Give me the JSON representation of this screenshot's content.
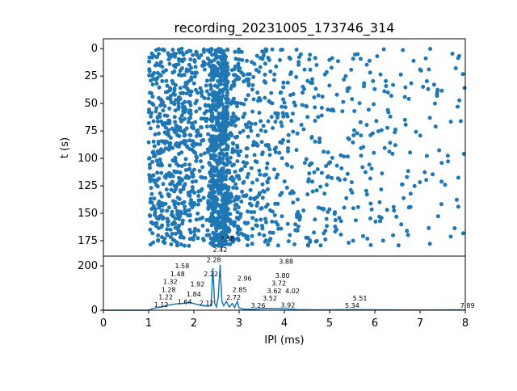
{
  "chart_data": [
    {
      "type": "scatter",
      "title": "recording_20231005_173746_314",
      "xlabel": "",
      "ylabel": "t (s)",
      "xlim": [
        0,
        8
      ],
      "ylim": [
        189,
        -9
      ],
      "yticks": [
        0,
        25,
        50,
        75,
        100,
        125,
        150,
        175
      ],
      "color": "#1f77b4",
      "point_density_by_ipi": {
        "bins_ms": [
          [
            1.0,
            2.0
          ],
          [
            2.0,
            2.35
          ],
          [
            2.35,
            2.75
          ],
          [
            2.75,
            3.0
          ],
          [
            3.0,
            4.0
          ],
          [
            4.0,
            5.0
          ],
          [
            5.0,
            6.0
          ],
          [
            6.0,
            8.0
          ]
        ],
        "points_per_bin": [
          520,
          120,
          620,
          130,
          230,
          140,
          90,
          110
        ]
      },
      "t_range_s": [
        0,
        180
      ]
    },
    {
      "type": "line",
      "xlabel": "IPI (ms)",
      "ylabel": "",
      "xlim": [
        0,
        8
      ],
      "ylim": [
        0,
        244
      ],
      "xticks": [
        0,
        1,
        2,
        3,
        4,
        5,
        6,
        7,
        8
      ],
      "yticks": [
        0,
        200
      ],
      "color": "#1f77b4",
      "x": [
        0,
        1.0,
        1.1,
        1.2,
        1.3,
        1.4,
        1.5,
        1.6,
        1.7,
        1.8,
        1.9,
        2.0,
        2.1,
        2.2,
        2.3,
        2.38,
        2.42,
        2.46,
        2.5,
        2.54,
        2.58,
        2.62,
        2.66,
        2.72,
        2.78,
        2.85,
        2.9,
        2.96,
        3.0,
        3.1,
        3.3,
        3.6,
        4.0,
        4.3,
        4.6,
        5.0,
        5.5,
        6.0,
        7.0,
        7.89,
        8.0
      ],
      "y": [
        0,
        0,
        8,
        12,
        15,
        22,
        25,
        28,
        30,
        32,
        35,
        30,
        25,
        20,
        18,
        20,
        190,
        30,
        15,
        60,
        205,
        40,
        20,
        40,
        15,
        30,
        12,
        40,
        10,
        5,
        4,
        8,
        7,
        3,
        2,
        2,
        3,
        2,
        1,
        2,
        0
      ],
      "peak_labels": [
        "1.12",
        "1.22",
        "1.28",
        "1.32",
        "1.48",
        "1.58",
        "1.64",
        "1.84",
        "1.92",
        "2.12",
        "2.22",
        "2.28",
        "2.42",
        "2.58",
        "2.72",
        "2.85",
        "2.96",
        "3.26",
        "3.52",
        "3.62",
        "3.72",
        "3.80",
        "3.88",
        "3.92",
        "4.02",
        "5.34",
        "5.51",
        "7.89"
      ],
      "peak_heights": [
        8,
        10,
        10,
        12,
        15,
        18,
        20,
        22,
        35,
        14,
        14,
        12,
        190,
        205,
        40,
        10,
        28,
        3,
        4,
        4,
        6,
        7,
        6,
        5,
        4,
        3,
        3,
        4
      ]
    }
  ]
}
